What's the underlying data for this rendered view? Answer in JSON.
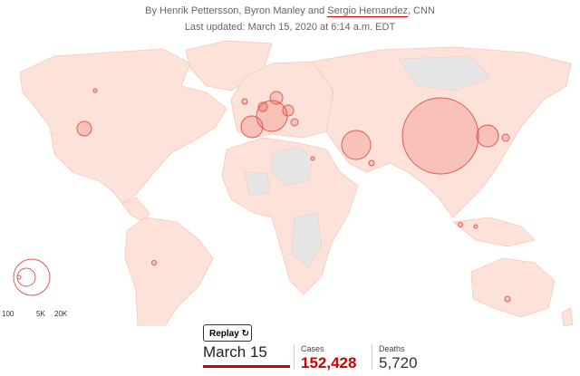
{
  "header": {
    "byline": {
      "prefix": "By Henrik Pettersson, Byron Manley and ",
      "link": "Sergio Hernandez",
      "suffix": ", CNN"
    },
    "updated": "Last updated: March 15, 2020 at 6:14 a.m. EDT"
  },
  "legend": {
    "labels": [
      "100",
      "5K",
      "20K"
    ]
  },
  "controls": {
    "replay": "Replay"
  },
  "stats": {
    "date": "March 15",
    "cases_label": "Cases",
    "cases": "152,428",
    "deaths_label": "Deaths",
    "deaths": "5,720"
  }
}
